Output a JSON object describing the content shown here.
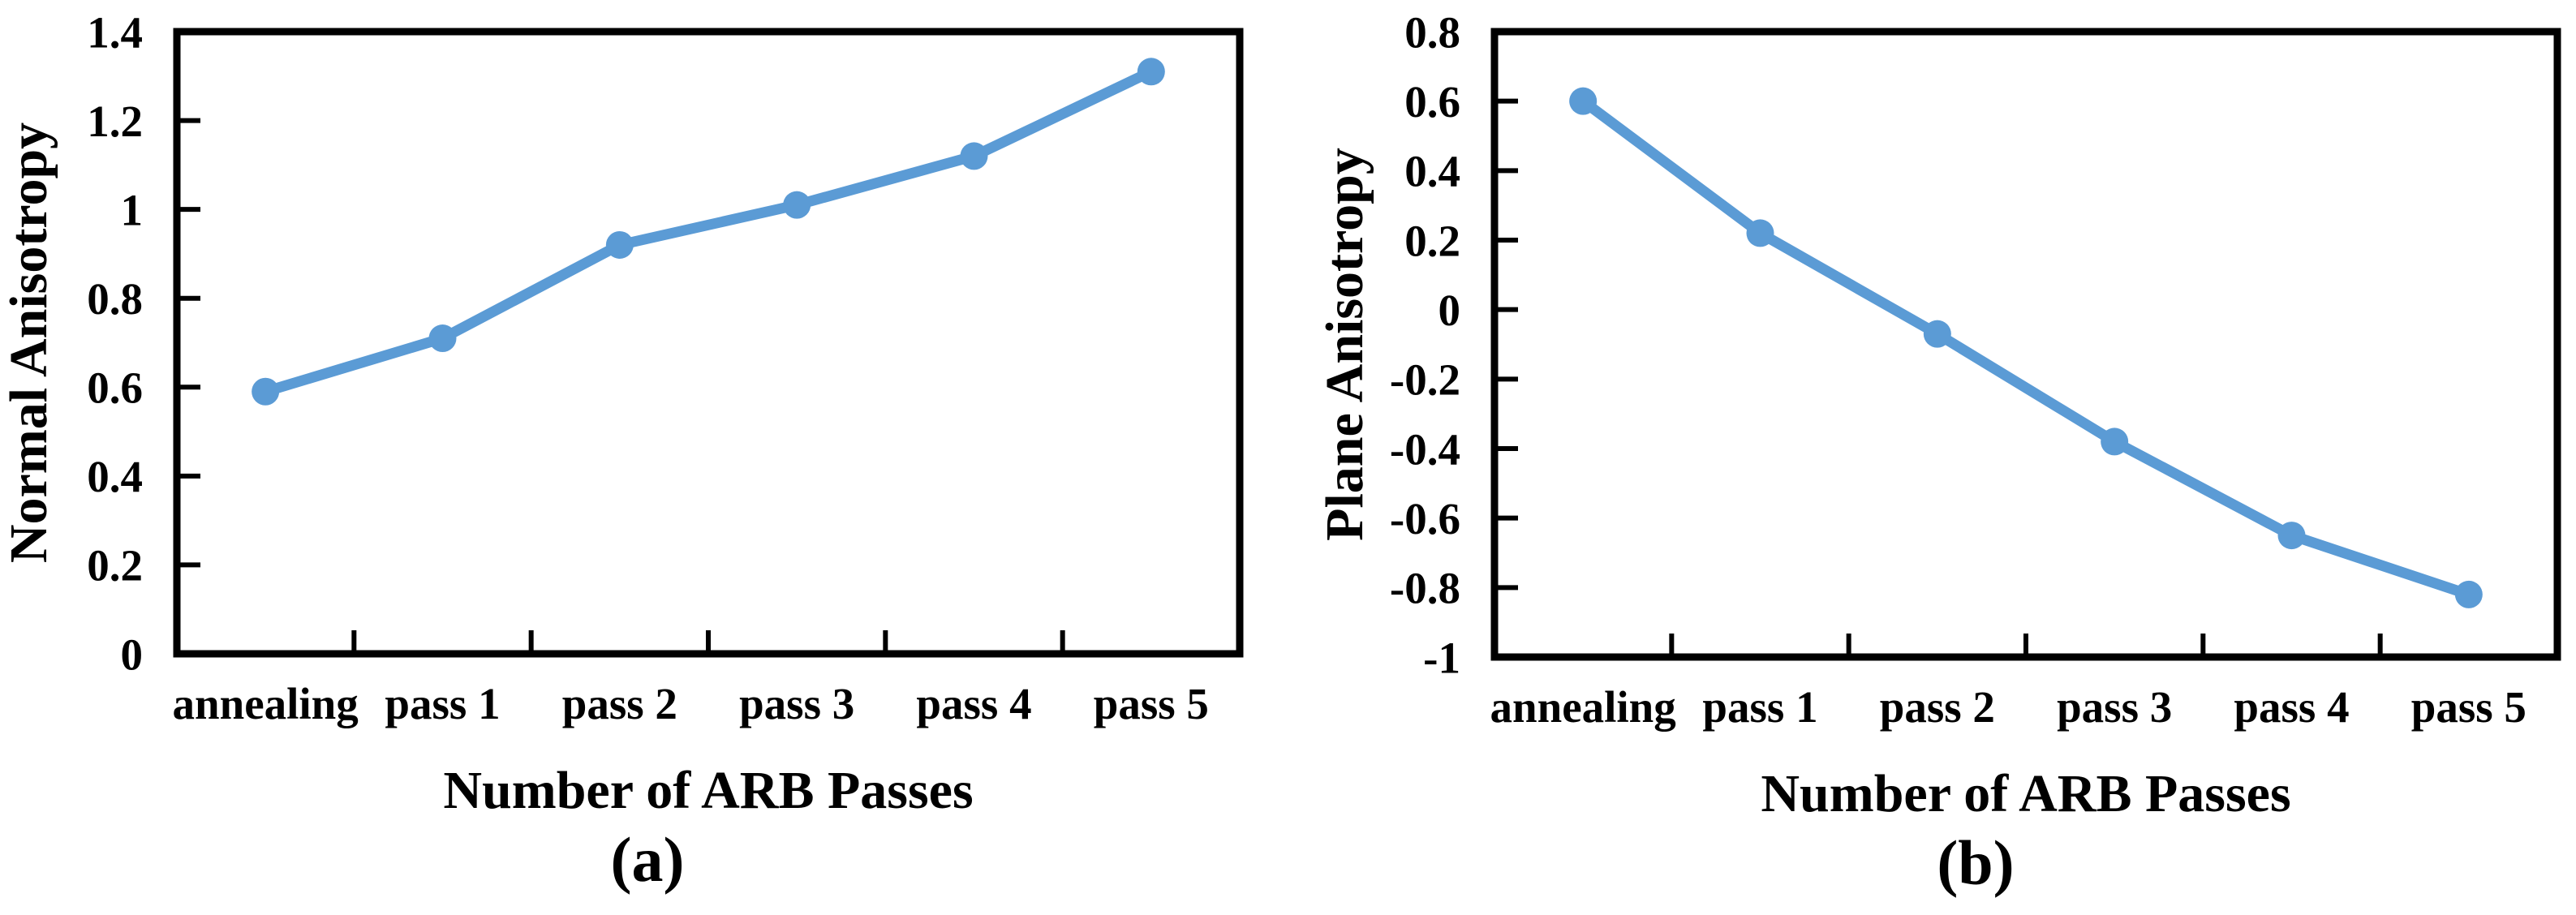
{
  "figure": {
    "background_color": "#ffffff",
    "axis_color": "#000000",
    "text_color": "#000000",
    "accent_color": "#5B9BD5"
  },
  "chart_data": [
    {
      "type": "line",
      "caption": "(a)",
      "title": "",
      "xlabel": "Number of ARB Passes",
      "ylabel": "Normal Anisotropy",
      "categories": [
        "annealing",
        "pass 1",
        "pass 2",
        "pass 3",
        "pass 4",
        "pass 5"
      ],
      "series": [
        {
          "name": "Normal Anisotropy",
          "values": [
            0.59,
            0.71,
            0.92,
            1.01,
            1.12,
            1.31
          ]
        }
      ],
      "ylim": [
        0,
        1.4
      ],
      "yticks": [
        "0",
        "0.2",
        "0.4",
        "0.6",
        "0.8",
        "1",
        "1.2",
        "1.4"
      ],
      "grid": false,
      "legend_position": "none",
      "line_color": "#5B9BD5",
      "marker": "circle"
    },
    {
      "type": "line",
      "caption": "(b)",
      "title": "",
      "xlabel": "Number of ARB Passes",
      "ylabel": "Plane Anisotropy",
      "categories": [
        "annealing",
        "pass 1",
        "pass 2",
        "pass 3",
        "pass 4",
        "pass 5"
      ],
      "series": [
        {
          "name": "Plane Anisotropy",
          "values": [
            0.6,
            0.22,
            -0.07,
            -0.38,
            -0.65,
            -0.82
          ]
        }
      ],
      "ylim": [
        -1,
        0.8
      ],
      "yticks": [
        "-1",
        "-0.8",
        "-0.6",
        "-0.4",
        "-0.2",
        "0",
        "0.2",
        "0.4",
        "0.6",
        "0.8"
      ],
      "grid": false,
      "legend_position": "none",
      "line_color": "#5B9BD5",
      "marker": "circle"
    }
  ]
}
